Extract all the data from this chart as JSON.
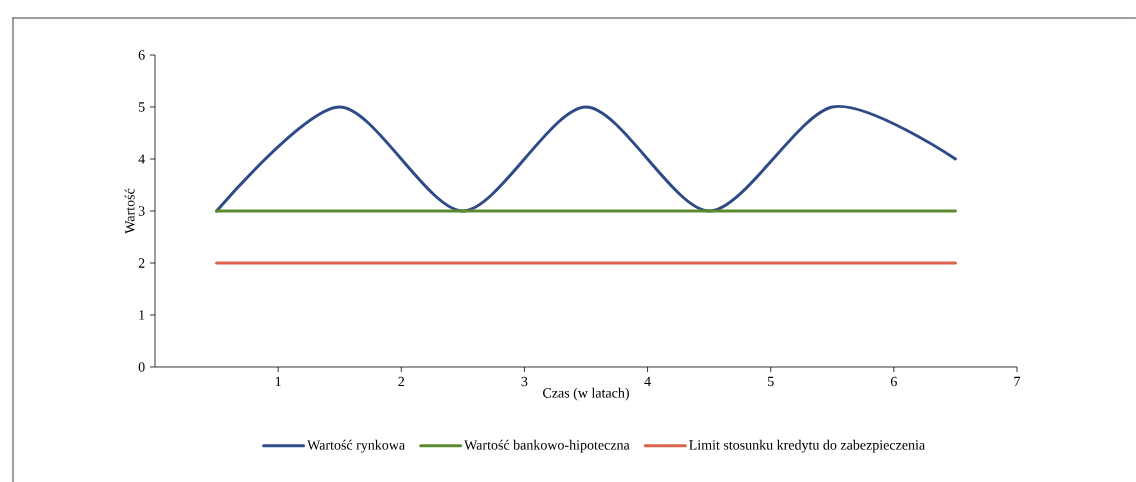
{
  "chart_data": {
    "type": "line",
    "xlabel": "Czas (w latach)",
    "ylabel": "Wartość",
    "x": [
      0.5,
      1.5,
      2.5,
      3.5,
      4.5,
      5.5,
      6.5
    ],
    "series": [
      {
        "name": "Wartość rynkowa",
        "color": "#2e4a87",
        "values": [
          3,
          5,
          3,
          5,
          3,
          5,
          4
        ]
      },
      {
        "name": "Wartość bankowo-hipoteczna",
        "color": "#5b8a2e",
        "values": [
          3,
          3,
          3,
          3,
          3,
          3,
          3
        ]
      },
      {
        "name": "Limit stosunku kredytu do zabezpieczenia",
        "color": "#d9634e",
        "values": [
          2,
          2,
          2,
          2,
          2,
          2,
          2
        ]
      }
    ],
    "xlim": [
      0,
      7
    ],
    "ylim": [
      0,
      6
    ],
    "xticks": [
      1,
      2,
      3,
      4,
      5,
      6,
      7
    ],
    "yticks": [
      0,
      1,
      2,
      3,
      4,
      5,
      6
    ],
    "grid": false,
    "legend": "bottom",
    "marker": "none",
    "line_style": "solid"
  }
}
